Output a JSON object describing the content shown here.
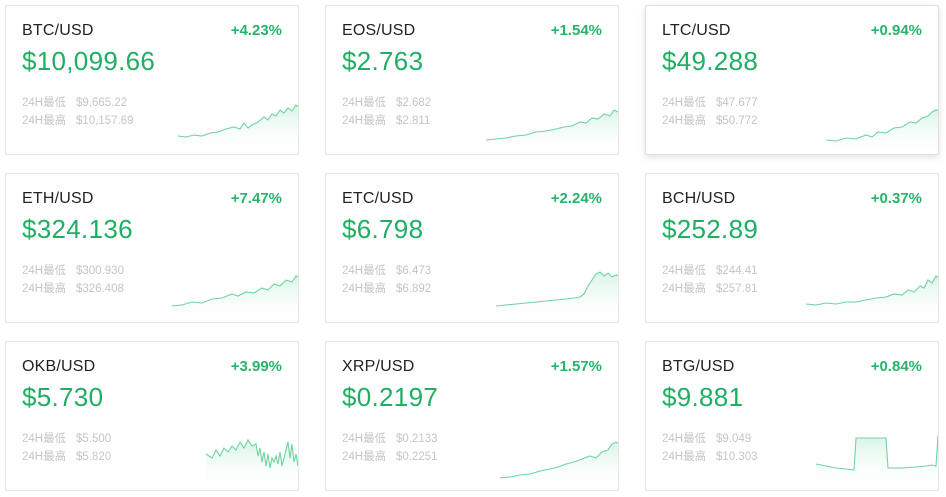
{
  "accent_color": "#1fae63",
  "cards": [
    {
      "pair": "BTC/USD",
      "change": "+4.23%",
      "price": "$10,099.66",
      "low_label": "24H最低",
      "low": "$9,665.22",
      "high_label": "24H最高",
      "high": "$10,157.69"
    },
    {
      "pair": "EOS/USD",
      "change": "+1.54%",
      "price": "$2.763",
      "low_label": "24H最低",
      "low": "$2.682",
      "high_label": "24H最高",
      "high": "$2.811"
    },
    {
      "pair": "LTC/USD",
      "change": "+0.94%",
      "price": "$49.288",
      "low_label": "24H最低",
      "low": "$47.677",
      "high_label": "24H最高",
      "high": "$50.772"
    },
    {
      "pair": "ETH/USD",
      "change": "+7.47%",
      "price": "$324.136",
      "low_label": "24H最低",
      "low": "$300.930",
      "high_label": "24H最高",
      "high": "$326.408"
    },
    {
      "pair": "ETC/USD",
      "change": "+2.24%",
      "price": "$6.798",
      "low_label": "24H最低",
      "low": "$6.473",
      "high_label": "24H最高",
      "high": "$6.892"
    },
    {
      "pair": "BCH/USD",
      "change": "+0.37%",
      "price": "$252.89",
      "low_label": "24H最低",
      "low": "$244.41",
      "high_label": "24H最高",
      "high": "$257.81"
    },
    {
      "pair": "OKB/USD",
      "change": "+3.99%",
      "price": "$5.730",
      "low_label": "24H最低",
      "low": "$5.500",
      "high_label": "24H最高",
      "high": "$5.820"
    },
    {
      "pair": "XRP/USD",
      "change": "+1.57%",
      "price": "$0.2197",
      "low_label": "24H最低",
      "low": "$0.2133",
      "high_label": "24H最高",
      "high": "$0.2251"
    },
    {
      "pair": "BTG/USD",
      "change": "+0.84%",
      "price": "$9.881",
      "low_label": "24H最低",
      "low": "$9.049",
      "high_label": "24H最高",
      "high": "$10.303"
    }
  ]
}
